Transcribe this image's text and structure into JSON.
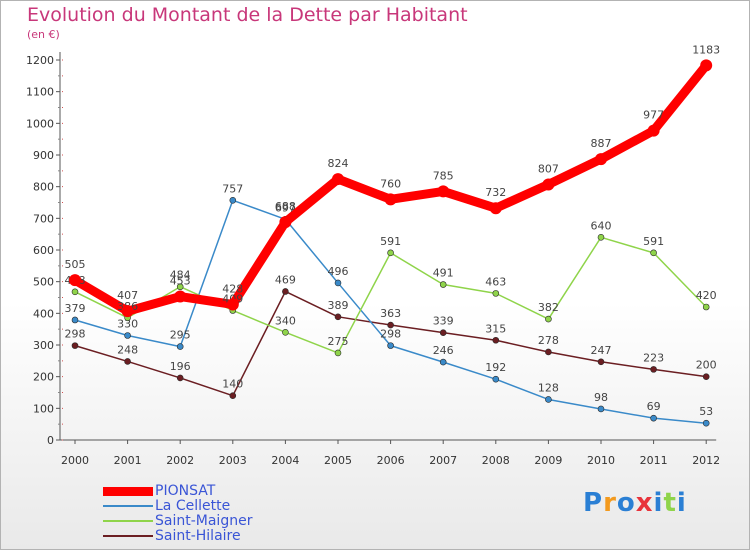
{
  "header": {
    "title": "Evolution du Montant de la Dette par Habitant",
    "unit": "(en €)"
  },
  "logo": {
    "text": "Proxiti"
  },
  "chart_data": {
    "type": "line",
    "title": "Evolution du Montant de la Dette par Habitant",
    "ylabel": "(en €)",
    "xlabel": "",
    "ylim": [
      0,
      1200
    ],
    "yticks": [
      0,
      100,
      200,
      300,
      400,
      500,
      600,
      700,
      800,
      900,
      1000,
      1100,
      1200
    ],
    "grid": false,
    "legend_position": "bottom-left",
    "x": [
      "2000",
      "2001",
      "2002",
      "2003",
      "2004",
      "2005",
      "2006",
      "2007",
      "2008",
      "2009",
      "2010",
      "2011",
      "2012"
    ],
    "series": [
      {
        "name": "Saint-Hilaire",
        "color": "#6b1e22",
        "values": [
          298,
          248,
          196,
          140,
          469,
          389,
          363,
          339,
          315,
          278,
          247,
          223,
          200
        ]
      },
      {
        "name": "La Cellette",
        "color": "#3a8ac9",
        "values": [
          379,
          330,
          295,
          757,
          697,
          496,
          298,
          246,
          192,
          128,
          98,
          69,
          53
        ]
      },
      {
        "name": "Saint-Maigner",
        "color": "#8fd44a",
        "values": [
          468,
          386,
          484,
          409,
          340,
          275,
          591,
          491,
          463,
          382,
          640,
          591,
          420
        ]
      },
      {
        "name": "PIONSAT",
        "color": "#ff0000",
        "values": [
          505,
          407,
          453,
          428,
          688,
          824,
          760,
          785,
          732,
          807,
          887,
          977,
          1183
        ]
      }
    ]
  }
}
